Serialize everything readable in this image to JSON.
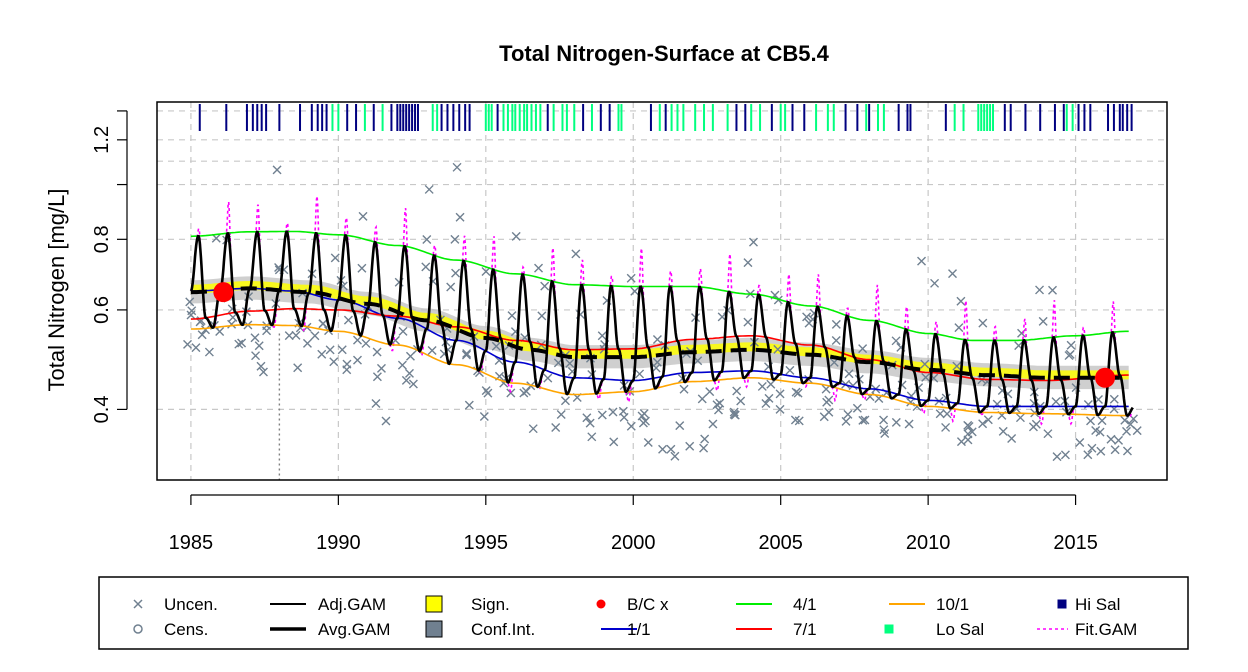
{
  "chart_data": {
    "type": "line",
    "title": "Total Nitrogen-Surface at CB5.4",
    "xlabel": "",
    "ylabel": "Total Nitrogen [mg/L]",
    "xlim": [
      1983.85,
      2018.1
    ],
    "ylim": [
      0.3,
      1.4
    ],
    "y_scale": "log",
    "x_ticks": [
      1985,
      1990,
      1995,
      2000,
      2005,
      2010,
      2015
    ],
    "x_tick_labels": [
      "1985",
      "1990",
      "1995",
      "2000",
      "2005",
      "2010",
      "2015"
    ],
    "y_ticks": [
      0.4,
      0.6,
      0.8,
      1.0,
      1.2
    ],
    "y_tick_labels": [
      "0.4",
      "0.6",
      "0.8",
      "",
      "1.2"
    ],
    "grid": true,
    "legend_placement": "bottom",
    "legend": [
      {
        "label": "Uncen.",
        "symbol": "x",
        "color": "#708090"
      },
      {
        "label": "Cens.",
        "symbol": "o",
        "color": "#708090"
      },
      {
        "label": "Adj.GAM",
        "symbol": "line",
        "color": "#000000"
      },
      {
        "label": "Avg.GAM",
        "symbol": "dash-thick",
        "color": "#000000"
      },
      {
        "label": "Sign.",
        "symbol": "box",
        "color": "#ffff00"
      },
      {
        "label": "Conf.Int.",
        "symbol": "box",
        "color": "#708090"
      },
      {
        "label": "B/C x",
        "symbol": "dot",
        "color": "#ff0000"
      },
      {
        "label": "1/1",
        "symbol": "line",
        "color": "#0000cd"
      },
      {
        "label": "4/1",
        "symbol": "line",
        "color": "#00ee00"
      },
      {
        "label": "7/1",
        "symbol": "line",
        "color": "#ff0000"
      },
      {
        "label": "10/1",
        "symbol": "line",
        "color": "#ffa500"
      },
      {
        "label": "Lo Sal",
        "symbol": "square",
        "color": "#00ff7f"
      },
      {
        "label": "Hi Sal",
        "symbol": "square",
        "color": "#000080"
      },
      {
        "label": "Fit.GAM",
        "symbol": "dotted",
        "color": "#ff00ff"
      }
    ],
    "baseline_x": 1988.0,
    "bc_points": [
      {
        "x": 1986.1,
        "y": 0.645
      },
      {
        "x": 2016.0,
        "y": 0.455
      }
    ],
    "avg_gam": {
      "x": [
        1985.0,
        1987.0,
        1989.0,
        1991.0,
        1993.0,
        1995.0,
        1996.5,
        1998.0,
        2000.0,
        2002.0,
        2004.0,
        2006.0,
        2008.0,
        2010.0,
        2012.0,
        2014.0,
        2016.0
      ],
      "y": [
        0.645,
        0.655,
        0.645,
        0.615,
        0.575,
        0.535,
        0.51,
        0.495,
        0.495,
        0.505,
        0.51,
        0.5,
        0.485,
        0.47,
        0.46,
        0.455,
        0.455
      ]
    },
    "series": [
      {
        "name": "4/1",
        "color": "#00ee00",
        "x": [
          1985.0,
          1987.0,
          1988.5,
          1990.0,
          1992.0,
          1994.0,
          1996.0,
          1998.0,
          2000.0,
          2002.0,
          2004.0,
          2006.0,
          2008.0,
          2010.0,
          2011.5,
          2013.0,
          2015.0,
          2016.8
        ],
        "y": [
          0.81,
          0.825,
          0.826,
          0.815,
          0.78,
          0.735,
          0.695,
          0.665,
          0.66,
          0.66,
          0.64,
          0.61,
          0.575,
          0.545,
          0.53,
          0.53,
          0.54,
          0.55
        ]
      },
      {
        "name": "1/1",
        "color": "#0000cd",
        "x": [
          1985.0,
          1987.0,
          1988.5,
          1990.0,
          1992.0,
          1994.0,
          1996.0,
          1998.0,
          2000.0,
          2002.0,
          2004.0,
          2006.0,
          2008.0,
          2010.0,
          2012.0,
          2014.0,
          2016.8
        ],
        "y": [
          0.648,
          0.655,
          0.648,
          0.625,
          0.58,
          0.53,
          0.485,
          0.455,
          0.45,
          0.465,
          0.468,
          0.455,
          0.435,
          0.415,
          0.405,
          0.405,
          0.405
        ]
      },
      {
        "name": "7/1",
        "color": "#ff0000",
        "x": [
          1985.0,
          1987.0,
          1988.5,
          1990.0,
          1992.0,
          1994.0,
          1996.0,
          1998.0,
          2000.0,
          2002.0,
          2004.0,
          2006.0,
          2008.0,
          2010.0,
          2012.0,
          2014.0,
          2016.8
        ],
        "y": [
          0.578,
          0.597,
          0.603,
          0.6,
          0.585,
          0.56,
          0.53,
          0.51,
          0.512,
          0.532,
          0.54,
          0.52,
          0.49,
          0.465,
          0.452,
          0.45,
          0.46
        ]
      },
      {
        "name": "10/1",
        "color": "#ffa500",
        "x": [
          1985.0,
          1987.0,
          1988.5,
          1990.0,
          1992.0,
          1994.0,
          1996.0,
          1998.0,
          2000.0,
          2002.0,
          2004.0,
          2006.0,
          2008.0,
          2010.0,
          2012.0,
          2014.0,
          2016.8
        ],
        "y": [
          0.555,
          0.565,
          0.563,
          0.55,
          0.52,
          0.48,
          0.445,
          0.425,
          0.43,
          0.448,
          0.455,
          0.445,
          0.425,
          0.405,
          0.395,
          0.393,
          0.39
        ]
      }
    ],
    "obs_years": [
      1985.0,
      1985.5,
      1986.0,
      1986.5,
      1987.0,
      1987.5,
      1988.0,
      1988.5,
      1989.0,
      1989.5,
      1990.0,
      1990.5,
      1991.0,
      1991.5,
      1992.0,
      1992.5,
      1993.0,
      1993.5,
      1994.0,
      1994.5,
      1995.0,
      1995.5,
      1996.0,
      1996.5,
      1997.0,
      1997.5,
      1998.0,
      1998.5,
      1999.0,
      1999.5,
      2000.0,
      2000.5,
      2001.0,
      2001.5,
      2002.0,
      2002.5,
      2003.0,
      2003.5,
      2004.0,
      2004.5,
      2005.0,
      2005.5,
      2006.0,
      2006.5,
      2007.0,
      2007.5,
      2008.0,
      2008.5,
      2009.0,
      2009.5,
      2010.0,
      2010.5,
      2011.0,
      2011.5,
      2012.0,
      2012.5,
      2013.0,
      2013.5,
      2014.0,
      2014.5,
      2015.0,
      2015.5,
      2016.0,
      2016.5,
      2016.9
    ],
    "obs_ranges": [
      [
        0.5,
        0.72
      ],
      [
        0.46,
        0.64
      ],
      [
        0.52,
        0.82
      ],
      [
        0.5,
        0.66
      ],
      [
        0.48,
        0.76
      ],
      [
        0.46,
        0.6
      ],
      [
        0.5,
        1.1
      ],
      [
        0.44,
        0.58
      ],
      [
        0.46,
        0.84
      ],
      [
        0.5,
        0.62
      ],
      [
        0.48,
        0.78
      ],
      [
        0.46,
        0.6
      ],
      [
        0.5,
        1.02
      ],
      [
        0.38,
        0.6
      ],
      [
        0.46,
        0.78
      ],
      [
        0.44,
        0.58
      ],
      [
        0.46,
        1.06
      ],
      [
        0.42,
        0.6
      ],
      [
        0.44,
        1.1
      ],
      [
        0.4,
        0.56
      ],
      [
        0.38,
        0.72
      ],
      [
        0.42,
        0.54
      ],
      [
        0.4,
        0.88
      ],
      [
        0.36,
        0.56
      ],
      [
        0.42,
        0.78
      ],
      [
        0.36,
        0.52
      ],
      [
        0.38,
        0.8
      ],
      [
        0.34,
        0.5
      ],
      [
        0.36,
        0.7
      ],
      [
        0.34,
        0.48
      ],
      [
        0.36,
        0.74
      ],
      [
        0.32,
        0.46
      ],
      [
        0.34,
        0.7
      ],
      [
        0.32,
        0.46
      ],
      [
        0.34,
        0.64
      ],
      [
        0.34,
        0.48
      ],
      [
        0.38,
        0.9
      ],
      [
        0.38,
        0.5
      ],
      [
        0.4,
        0.86
      ],
      [
        0.4,
        0.5
      ],
      [
        0.4,
        0.74
      ],
      [
        0.38,
        0.5
      ],
      [
        0.4,
        0.6
      ],
      [
        0.38,
        0.48
      ],
      [
        0.38,
        0.72
      ],
      [
        0.38,
        0.48
      ],
      [
        0.38,
        0.6
      ],
      [
        0.36,
        0.46
      ],
      [
        0.36,
        0.54
      ],
      [
        0.36,
        0.44
      ],
      [
        0.36,
        0.76
      ],
      [
        0.34,
        0.44
      ],
      [
        0.34,
        0.7
      ],
      [
        0.34,
        0.44
      ],
      [
        0.36,
        0.7
      ],
      [
        0.36,
        0.44
      ],
      [
        0.34,
        0.66
      ],
      [
        0.34,
        0.44
      ],
      [
        0.34,
        0.66
      ],
      [
        0.32,
        0.44
      ],
      [
        0.32,
        0.62
      ],
      [
        0.32,
        0.44
      ],
      [
        0.32,
        0.5
      ],
      [
        0.32,
        0.42
      ],
      [
        0.32,
        0.44
      ]
    ],
    "salinity_ticks": {
      "hi_sal": [
        1985.3,
        1986.2,
        1986.9,
        1987.1,
        1987.25,
        1987.4,
        1987.55,
        1988.0,
        1988.7,
        1989.1,
        1989.3,
        1989.45,
        1989.6,
        1990.3,
        1990.6,
        1991.2,
        1991.8,
        1992.0,
        1992.1,
        1992.2,
        1992.3,
        1992.4,
        1992.5,
        1992.6,
        1992.7,
        1993.5,
        1993.7,
        1993.9,
        1994.1,
        1994.3,
        1994.45,
        1995.4,
        1997.1,
        1998.3,
        1998.9,
        1999.2,
        2000.6,
        2001.1,
        2003.5,
        2003.8,
        2004.7,
        2005.4,
        2005.8,
        2007.2,
        2007.6,
        2008.0,
        2009.0,
        2009.3,
        2009.4,
        2010.6,
        2012.6,
        2012.8,
        2013.3,
        2013.8,
        2014.3,
        2014.6,
        2015.1,
        2015.3,
        2015.5,
        2016.1,
        2016.3,
        2016.5,
        2016.6,
        2016.75,
        2016.9
      ],
      "lo_sal": [
        1989.8,
        1990.0,
        1990.9,
        1991.5,
        1993.2,
        1993.35,
        1995.0,
        1995.1,
        1995.2,
        1995.6,
        1995.75,
        1995.9,
        1996.0,
        1996.15,
        1996.3,
        1996.4,
        1996.55,
        1996.7,
        1996.85,
        1997.3,
        1997.6,
        1997.75,
        1998.0,
        1998.6,
        1999.5,
        1999.6,
        2000.9,
        2001.3,
        2001.5,
        2001.7,
        2002.1,
        2002.4,
        2002.7,
        2003.2,
        2004.0,
        2004.3,
        2005.0,
        2005.15,
        2006.2,
        2006.6,
        2006.8,
        2007.9,
        2008.3,
        2008.5,
        2010.9,
        2011.2,
        2011.7,
        2011.8,
        2011.9,
        2012.0,
        2012.1,
        2012.2,
        2014.7,
        2014.9
      ]
    }
  }
}
